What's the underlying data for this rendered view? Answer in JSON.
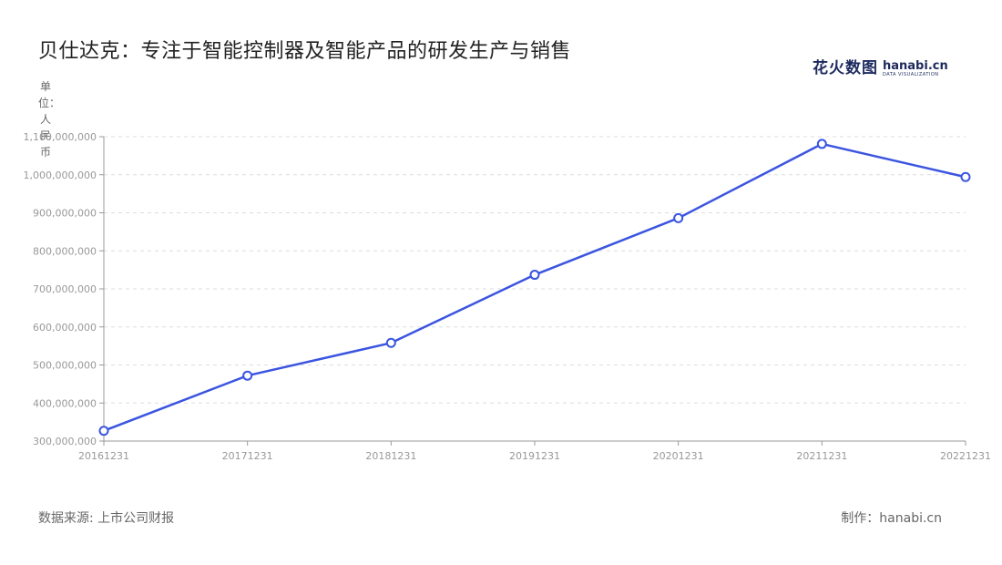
{
  "header": {
    "title": "贝仕达克：专注于智能控制器及智能产品的研发生产与销售",
    "brand_cn": "花火数图",
    "brand_en": "hanabi.cn",
    "brand_sub": "DATA VISUALIZATION"
  },
  "footer": {
    "source": "数据来源: 上市公司财报",
    "maker": "制作：hanabi.cn"
  },
  "colors": {
    "line": "#3b55e0",
    "grid": "#dddddd",
    "axis": "#999999",
    "tick_text": "#999999"
  },
  "chart_data": {
    "type": "line",
    "ylabel": "单位：人民币",
    "x": [
      "20161231",
      "20171231",
      "20181231",
      "20191231",
      "20201231",
      "20211231",
      "20221231"
    ],
    "series": [
      {
        "values": [
          327000000,
          472000000,
          558000000,
          737000000,
          886000000,
          1081000000,
          994000000
        ]
      }
    ],
    "ylim": [
      300000000,
      1100000000
    ],
    "yticks": [
      300000000,
      400000000,
      500000000,
      600000000,
      700000000,
      800000000,
      900000000,
      1000000000,
      1100000000
    ],
    "ytick_labels": [
      "300,000,000",
      "400,000,000",
      "500,000,000",
      "600,000,000",
      "700,000,000",
      "800,000,000",
      "900,000,000",
      "1,000,000,000",
      "1,100,000,000"
    ],
    "grid": "horizontal dashed",
    "legend": "none"
  }
}
